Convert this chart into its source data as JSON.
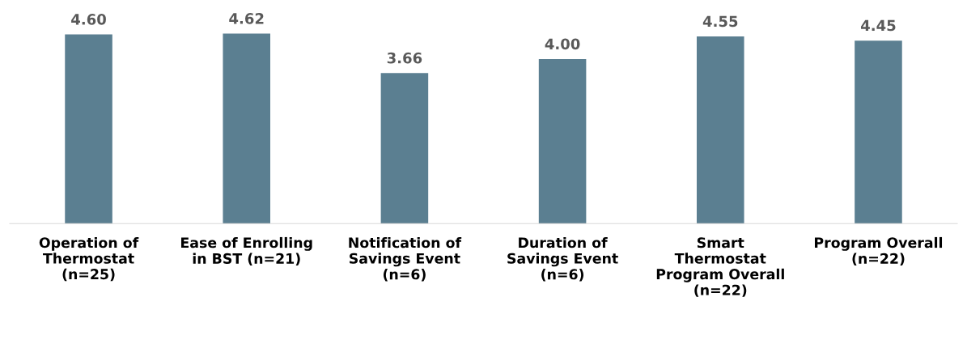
{
  "chart_data": {
    "type": "bar",
    "categories": [
      "Operation of\nThermostat\n(n=25)",
      "Ease of Enrolling\nin BST (n=21)",
      "Notification of\nSavings Event\n(n=6)",
      "Duration of\nSavings Event\n(n=6)",
      "Smart\nThermostat\nProgram Overall\n(n=22)",
      "Program Overall\n(n=22)"
    ],
    "values": [
      4.6,
      4.62,
      3.66,
      4.0,
      4.55,
      4.45
    ],
    "value_labels": [
      "4.60",
      "4.62",
      "3.66",
      "4.00",
      "4.55",
      "4.45"
    ],
    "color": "#5b7f91"
  }
}
